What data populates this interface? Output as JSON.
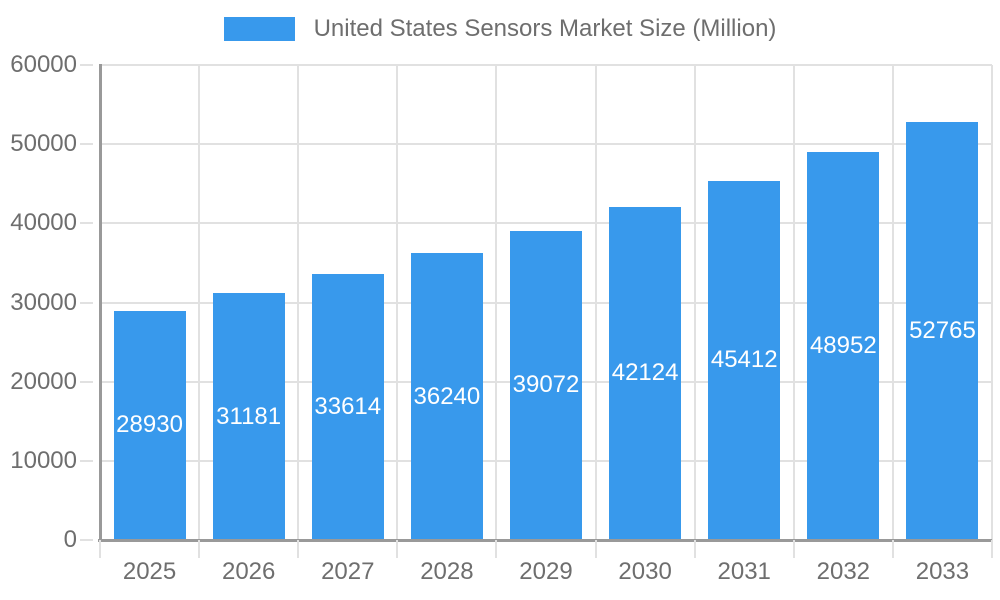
{
  "chart_data": {
    "type": "bar",
    "title": "",
    "legend": {
      "position": "top-center",
      "entries": [
        "United States Sensors Market Size (Million)"
      ]
    },
    "categories": [
      "2025",
      "2026",
      "2027",
      "2028",
      "2029",
      "2030",
      "2031",
      "2032",
      "2033"
    ],
    "values": [
      28930,
      31181,
      33614,
      36240,
      39072,
      42124,
      45412,
      48952,
      52765
    ],
    "xlabel": "",
    "ylabel": "",
    "ylim": [
      0,
      60000
    ],
    "yticks": [
      0,
      10000,
      20000,
      30000,
      40000,
      50000,
      60000
    ],
    "grid": true,
    "bar_labels_inside": true,
    "colors": {
      "bar": "#3899EC",
      "bar_label": "#FFFFFF",
      "grid": "#E1E1E1",
      "axis": "#999999",
      "text": "#6E6E6E",
      "background": "#FFFFFF"
    }
  }
}
